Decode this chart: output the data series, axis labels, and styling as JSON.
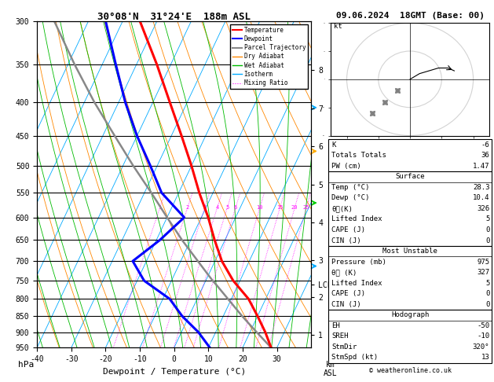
{
  "title_left": "30°08'N  31°24'E  188m ASL",
  "title_right": "09.06.2024  18GMT (Base: 00)",
  "xlabel": "Dewpoint / Temperature (°C)",
  "ylabel_left": "hPa",
  "pressure_levels": [
    300,
    350,
    400,
    450,
    500,
    550,
    600,
    650,
    700,
    750,
    800,
    850,
    900,
    950
  ],
  "temp_ticks": [
    -40,
    -30,
    -20,
    -10,
    0,
    10,
    20,
    30
  ],
  "t_min": -40,
  "t_max": 40,
  "p_min": 300,
  "p_max": 950,
  "skew_amount": 45.0,
  "temperature_profile": {
    "pressure": [
      950,
      900,
      850,
      800,
      750,
      700,
      650,
      600,
      550,
      500,
      450,
      400,
      350,
      300
    ],
    "temp": [
      28.3,
      24.5,
      20.0,
      15.0,
      8.0,
      2.0,
      -3.0,
      -8.0,
      -14.0,
      -20.0,
      -27.0,
      -35.0,
      -44.0,
      -55.0
    ]
  },
  "dewpoint_profile": {
    "pressure": [
      950,
      900,
      850,
      800,
      750,
      700,
      650,
      600,
      550,
      500,
      450,
      400,
      350,
      300
    ],
    "temp": [
      10.4,
      5.0,
      -2.0,
      -8.0,
      -18.0,
      -24.0,
      -19.0,
      -15.0,
      -25.0,
      -32.0,
      -40.0,
      -48.0,
      -56.0,
      -65.0
    ]
  },
  "parcel_profile": {
    "pressure": [
      950,
      900,
      850,
      800,
      760,
      750,
      700,
      650,
      600,
      550,
      500,
      450,
      400,
      350,
      300
    ],
    "temp": [
      28.3,
      22.0,
      15.5,
      9.0,
      3.5,
      2.0,
      -5.0,
      -12.5,
      -20.0,
      -28.0,
      -37.0,
      -46.5,
      -57.0,
      -68.0,
      -80.0
    ]
  },
  "lcl_pressure": 760,
  "km_ticks": [
    1,
    2,
    3,
    4,
    5,
    6,
    7,
    8
  ],
  "km_pressures": [
    907,
    795,
    697,
    610,
    534,
    467,
    408,
    357
  ],
  "mixing_ratio_lines": [
    1,
    2,
    3,
    4,
    5,
    6,
    10,
    15,
    20,
    25
  ],
  "surface": {
    "temp": 28.3,
    "dewp": 10.4,
    "theta_e": 326,
    "lifted_index": 5,
    "cape": 0,
    "cin": 0
  },
  "most_unstable": {
    "pressure": 975,
    "theta_e": 327,
    "lifted_index": 5,
    "cape": 0,
    "cin": 0
  },
  "sounding_indices": {
    "K": -6,
    "totals_totals": 36,
    "pw_cm": 1.47
  },
  "hodograph": {
    "EH": -50,
    "SREH": -10,
    "StmDir": "320°",
    "StmSpd_kt": 13
  },
  "colors": {
    "temperature": "#ff0000",
    "dewpoint": "#0000ff",
    "parcel": "#888888",
    "dry_adiabat": "#ff8800",
    "wet_adiabat": "#00bb00",
    "isotherm": "#00aaff",
    "mixing_ratio": "#ff00ff",
    "background": "#ffffff",
    "grid": "#000000"
  }
}
